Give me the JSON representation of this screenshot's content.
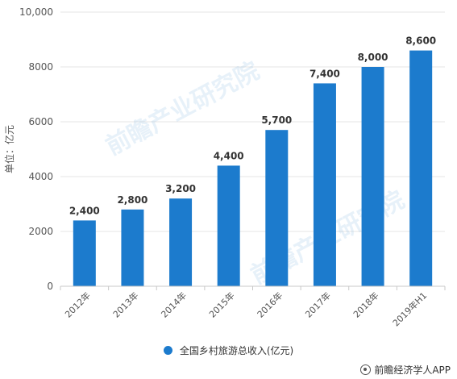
{
  "chart_data": {
    "type": "bar",
    "categories": [
      "2012年",
      "2013年",
      "2014年",
      "2015年",
      "2016年",
      "2017年",
      "2018年",
      "2019年H1"
    ],
    "series": [
      {
        "name": "全国乡村旅游总收入(亿元)",
        "values": [
          2400,
          2800,
          3200,
          4400,
          5700,
          7400,
          8000,
          8600
        ]
      }
    ],
    "value_labels": [
      "2,400",
      "2,800",
      "3,200",
      "4,400",
      "5,700",
      "7,400",
      "8,000",
      "8,600"
    ],
    "ylabel": "单位：亿元",
    "ylim": [
      0,
      10000
    ],
    "yticks": [
      0,
      2000,
      4000,
      6000,
      8000,
      10000
    ],
    "ytick_labels": [
      "0",
      "2000",
      "4000",
      "6000",
      "8000",
      "10,000"
    ],
    "grid": true,
    "legend_position": "bottom",
    "bar_color": "#1c7bcd"
  },
  "footer": {
    "text": "前瞻经济学人APP"
  },
  "watermark": {
    "text": "前瞻产业研究院"
  }
}
